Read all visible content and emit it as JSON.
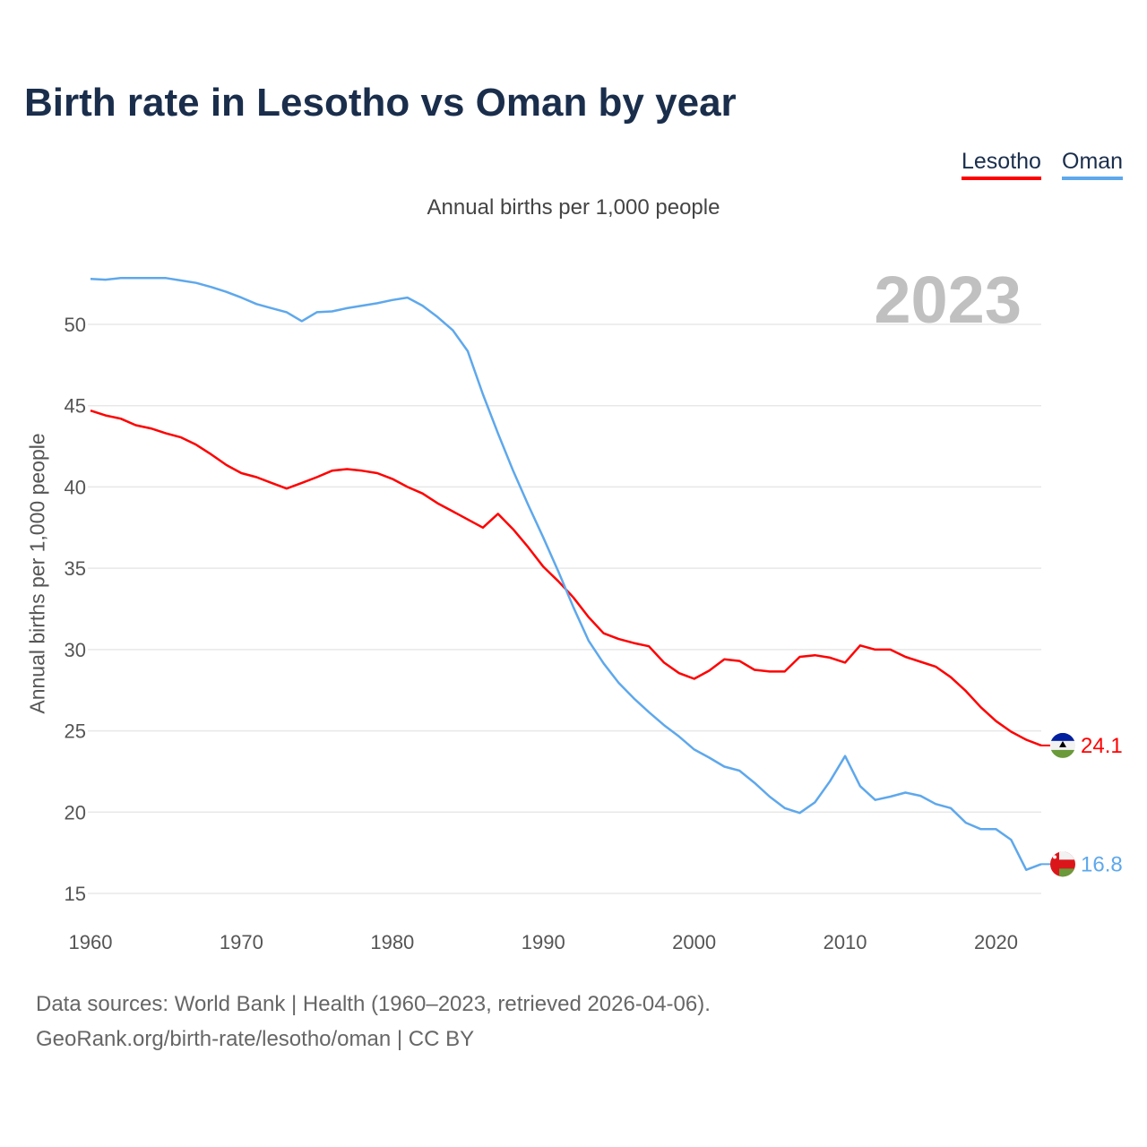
{
  "title": "Birth rate in Lesotho vs Oman by year",
  "footer": {
    "line1": "Data sources: World Bank | Health (1960–2023, retrieved 2026-04-06).",
    "line2": "GeoRank.org/birth-rate/lesotho/oman | CC BY"
  },
  "chart_data": {
    "type": "line",
    "title": "Birth rate in Lesotho vs Oman by year",
    "subtitle": "Annual births per 1,000 people",
    "ylabel": "Annual births per 1,000 people",
    "xlabel": "",
    "year_label": "2023",
    "xlim": [
      1960,
      2023
    ],
    "ylim": [
      13.5,
      54
    ],
    "yticks": [
      15,
      20,
      25,
      30,
      35,
      40,
      45,
      50
    ],
    "xticks": [
      1960,
      1970,
      1980,
      1990,
      2000,
      2010,
      2020
    ],
    "grid": true,
    "legend": "top-right",
    "x_start": 1960,
    "series": [
      {
        "name": "Lesotho",
        "color": "#ff0000",
        "end_label": "24.1",
        "flag": "lesotho-flag",
        "values": [
          44.7,
          44.4,
          44.2,
          43.8,
          43.6,
          43.3,
          43.05,
          42.6,
          42.0,
          41.35,
          40.85,
          40.6,
          40.25,
          39.9,
          40.25,
          40.6,
          41.0,
          41.1,
          41.0,
          40.85,
          40.5,
          40.0,
          39.6,
          39.0,
          38.5,
          38.0,
          37.5,
          38.35,
          37.4,
          36.3,
          35.1,
          34.2,
          33.2,
          32.0,
          31.0,
          30.65,
          30.4,
          30.2,
          29.2,
          28.55,
          28.2,
          28.7,
          29.4,
          29.3,
          28.75,
          28.65,
          28.65,
          29.55,
          29.65,
          29.5,
          29.2,
          30.25,
          30.0,
          30.0,
          29.55,
          29.25,
          28.95,
          28.3,
          27.45,
          26.45,
          25.6,
          24.95,
          24.45,
          24.1
        ]
      },
      {
        "name": "Oman",
        "color": "#5ea8ec",
        "end_label": "16.8",
        "flag": "oman-flag",
        "values": [
          52.8,
          52.75,
          52.85,
          52.85,
          52.85,
          52.85,
          52.7,
          52.55,
          52.3,
          52.0,
          51.65,
          51.25,
          51.0,
          50.75,
          50.2,
          50.75,
          50.8,
          51.0,
          51.15,
          51.3,
          51.5,
          51.65,
          51.15,
          50.45,
          49.65,
          48.35,
          45.7,
          43.3,
          41.0,
          38.9,
          36.9,
          34.8,
          32.6,
          30.55,
          29.15,
          27.95,
          27.0,
          26.15,
          25.35,
          24.65,
          23.85,
          23.35,
          22.8,
          22.55,
          21.8,
          20.95,
          20.25,
          19.95,
          20.6,
          21.9,
          23.45,
          21.6,
          20.75,
          20.95,
          21.2,
          21.0,
          20.5,
          20.25,
          19.35,
          18.95,
          18.95,
          18.3,
          16.45,
          16.8
        ]
      }
    ]
  }
}
